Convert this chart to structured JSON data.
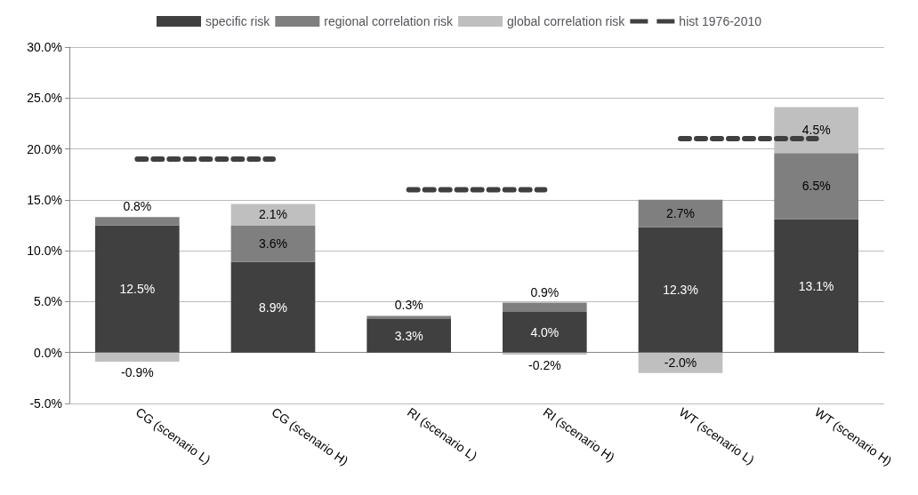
{
  "chart_data": {
    "type": "bar",
    "stacked": true,
    "categories": [
      "CG (scenario L)",
      "CG (scenario H)",
      "RI (scenario L)",
      "RI (scenario H)",
      "WT (scenario L)",
      "WT (scenario H)"
    ],
    "series": [
      {
        "name": "specific risk",
        "color": "#404040",
        "values": [
          12.5,
          8.9,
          3.3,
          4.0,
          12.3,
          13.1
        ],
        "value_labels": [
          "12.5%",
          "8.9%",
          "3.3%",
          "4.0%",
          "12.3%",
          "13.1%"
        ]
      },
      {
        "name": "regional correlation risk",
        "color": "#7f7f7f",
        "values": [
          0.8,
          3.6,
          0.3,
          0.9,
          2.7,
          6.5
        ],
        "value_labels": [
          "0.8%",
          "3.6%",
          "0.3%",
          "0.9%",
          "2.7%",
          "6.5%"
        ]
      },
      {
        "name": "global correlation risk",
        "color": "#bfbfbf",
        "values": [
          -0.9,
          2.1,
          null,
          -0.2,
          -2.0,
          4.5
        ],
        "value_labels": [
          "-0.9%",
          "2.1%",
          null,
          "-0.2%",
          "-2.0%",
          "4.5%"
        ]
      },
      {
        "name": "hist 1976-2010",
        "type": "line",
        "color": "#404040",
        "line_style": "dashed",
        "values": [
          19,
          19,
          null,
          null,
          null,
          null
        ]
      },
      {
        "type": "line",
        "color": "#404040",
        "line_style": "dashed",
        "values": [
          null,
          null,
          16,
          16,
          null,
          null
        ]
      },
      {
        "type": "line",
        "color": "#404040",
        "line_style": "dashed",
        "values": [
          null,
          null,
          null,
          null,
          21,
          21
        ]
      }
    ],
    "ylim": [
      -5,
      30
    ],
    "yticks": [
      {
        "value": -5,
        "label": "-5.0%"
      },
      {
        "value": 0,
        "label": "0.0%"
      },
      {
        "value": 5,
        "label": "5.0%"
      },
      {
        "value": 10,
        "label": "10.0%"
      },
      {
        "value": 15,
        "label": "15.0%"
      },
      {
        "value": 20,
        "label": "20.0%"
      },
      {
        "value": 25,
        "label": "25.0%"
      },
      {
        "value": 30,
        "label": "30.0%"
      }
    ],
    "grid": "y",
    "legend": "top"
  }
}
